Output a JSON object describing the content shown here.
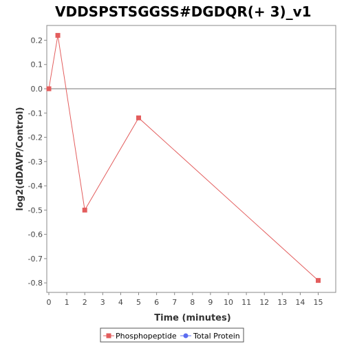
{
  "chart_data": {
    "type": "line",
    "title": "VDDSPSTSGGSS#DGDQR(+ 3)_v1",
    "xlabel": "Time (minutes)",
    "ylabel": "log2(dDAVP/Control)",
    "xlim": [
      0,
      15.6
    ],
    "ylim": [
      -0.85,
      0.25
    ],
    "xticks": [
      "0",
      "1",
      "2",
      "3",
      "4",
      "5",
      "6",
      "7",
      "8",
      "9",
      "10",
      "11",
      "12",
      "13",
      "14",
      "15"
    ],
    "yticks": [
      "0.2",
      "0.1",
      "0.0",
      "-0.1",
      "-0.2",
      "-0.3",
      "-0.4",
      "-0.5",
      "-0.6",
      "-0.7",
      "-0.8"
    ],
    "zero_line": true,
    "grid": false,
    "legend_position": "bottom",
    "series": [
      {
        "name": "Phosphopeptide",
        "color": "#e35d5d",
        "marker": "square",
        "x": [
          0,
          0.5,
          2,
          5,
          15
        ],
        "y": [
          0.0,
          0.22,
          -0.5,
          -0.12,
          -0.79
        ]
      },
      {
        "name": "Total Protein",
        "color": "#5b6cf0",
        "marker": "circle",
        "x": [],
        "y": []
      }
    ]
  }
}
